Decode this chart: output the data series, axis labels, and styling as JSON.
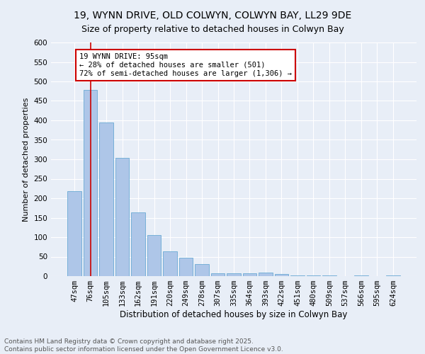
{
  "title": "19, WYNN DRIVE, OLD COLWYN, COLWYN BAY, LL29 9DE",
  "subtitle": "Size of property relative to detached houses in Colwyn Bay",
  "xlabel": "Distribution of detached houses by size in Colwyn Bay",
  "ylabel": "Number of detached properties",
  "categories": [
    "47sqm",
    "76sqm",
    "105sqm",
    "133sqm",
    "162sqm",
    "191sqm",
    "220sqm",
    "249sqm",
    "278sqm",
    "307sqm",
    "335sqm",
    "364sqm",
    "393sqm",
    "422sqm",
    "451sqm",
    "480sqm",
    "509sqm",
    "537sqm",
    "566sqm",
    "595sqm",
    "624sqm"
  ],
  "values": [
    219,
    478,
    394,
    303,
    163,
    105,
    64,
    47,
    31,
    7,
    7,
    7,
    9,
    5,
    1,
    1,
    1,
    0,
    1,
    0,
    1
  ],
  "bar_color": "#aec6e8",
  "bar_edge_color": "#6aaad4",
  "vline_x": 1,
  "vline_color": "#cc0000",
  "annotation_text": "19 WYNN DRIVE: 95sqm\n← 28% of detached houses are smaller (501)\n72% of semi-detached houses are larger (1,306) →",
  "annotation_box_color": "#ffffff",
  "annotation_box_edge": "#cc0000",
  "ylim": [
    0,
    600
  ],
  "yticks": [
    0,
    50,
    100,
    150,
    200,
    250,
    300,
    350,
    400,
    450,
    500,
    550,
    600
  ],
  "bg_color": "#e8eef7",
  "plot_bg_color": "#e8eef7",
  "footer": "Contains HM Land Registry data © Crown copyright and database right 2025.\nContains public sector information licensed under the Open Government Licence v3.0.",
  "title_fontsize": 10,
  "xlabel_fontsize": 8.5,
  "ylabel_fontsize": 8,
  "tick_fontsize": 7.5,
  "footer_fontsize": 6.5,
  "annotation_fontsize": 7.5
}
